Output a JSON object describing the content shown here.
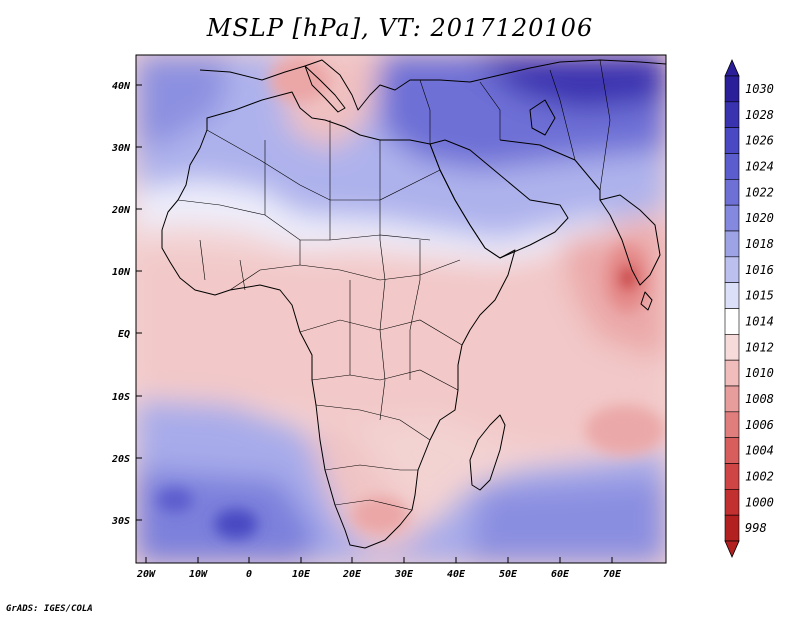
{
  "title": "MSLP [hPa], VT: 2017120106",
  "credit": "GrADS: IGES/COLA",
  "lat_ticks": [
    "40N",
    "30N",
    "20N",
    "10N",
    "EQ",
    "10S",
    "20S",
    "30S"
  ],
  "lon_ticks": [
    "20W",
    "10W",
    "0",
    "10E",
    "20E",
    "30E",
    "40E",
    "50E",
    "60E",
    "70E"
  ],
  "colorbar": {
    "levels": [
      "1030",
      "1028",
      "1026",
      "1024",
      "1022",
      "1020",
      "1018",
      "1016",
      "1015",
      "1014",
      "1012",
      "1010",
      "1008",
      "1006",
      "1004",
      "1002",
      "1000",
      "998"
    ],
    "colors": [
      "#2a1f99",
      "#3a33b0",
      "#4a48c2",
      "#5b5ccd",
      "#6e70d6",
      "#8488de",
      "#9ea3e6",
      "#bcc0ef",
      "#dcdff8",
      "#ffffff",
      "#f7dada",
      "#f0bcbc",
      "#e89d9d",
      "#e07d7d",
      "#d85e5e",
      "#cf4444",
      "#c33030",
      "#b32020"
    ]
  },
  "colors": {
    "land_outline": "#000000",
    "background": "#ffffff"
  }
}
